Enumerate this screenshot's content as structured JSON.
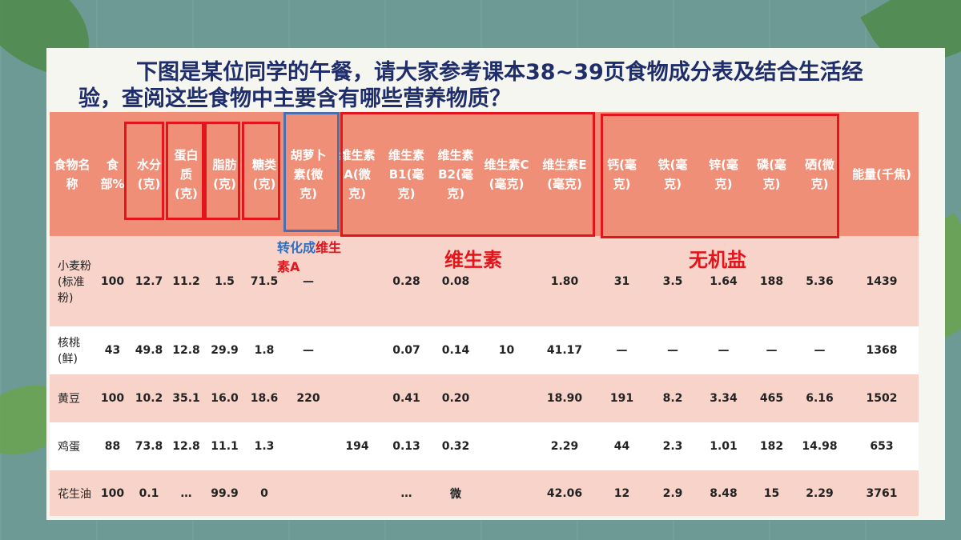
{
  "title": "下图是某位同学的午餐，请大家参考课本38~39页食物成分表及结合生活经验，查阅这些食物中主要含有哪些营养物质？",
  "table": {
    "header": [
      "食物名称",
      "食部%",
      "水分(克)",
      "蛋白质(克)",
      "脂肪(克)",
      "糖类(克)",
      "胡萝卜素(微克)",
      "维生素A(微克)",
      "维生素B1(毫克)",
      "维生素B2(毫克)",
      "维生素C(毫克)",
      "维生素E(毫克)",
      "钙(毫克)",
      "铁(毫克)",
      "锌(毫克)",
      "磷(毫克)",
      "硒(微克)",
      "能量(千焦)"
    ],
    "rows": [
      [
        "小麦粉(标准粉)",
        "100",
        "12.7",
        "11.2",
        "1.5",
        "71.5",
        "—",
        null,
        "0.28",
        "0.08",
        null,
        "1.80",
        "31",
        "3.5",
        "1.64",
        "188",
        "5.36",
        "1439"
      ],
      [
        "核桃(鲜)",
        "43",
        "49.8",
        "12.8",
        "29.9",
        "1.8",
        "—",
        null,
        "0.07",
        "0.14",
        "10",
        "41.17",
        "—",
        "—",
        "—",
        "—",
        "—",
        "1368"
      ],
      [
        "黄豆",
        "100",
        "10.2",
        "35.1",
        "16.0",
        "18.6",
        "220",
        null,
        "0.41",
        "0.20",
        null,
        "18.90",
        "191",
        "8.2",
        "3.34",
        "465",
        "6.16",
        "1502"
      ],
      [
        "鸡蛋",
        "88",
        "73.8",
        "12.8",
        "11.1",
        "1.3",
        null,
        "194",
        "0.13",
        "0.32",
        null,
        "2.29",
        "44",
        "2.3",
        "1.01",
        "182",
        "14.98",
        "653"
      ],
      [
        "花生油",
        "100",
        "0.1",
        "…",
        "99.9",
        "0",
        null,
        null,
        "…",
        "微",
        null,
        "42.06",
        "12",
        "2.9",
        "8.48",
        "15",
        "2.29",
        "3761"
      ]
    ]
  },
  "annotations": {
    "conversion": [
      "转化成",
      "维生素A"
    ],
    "vitamins": "维生素",
    "minerals": "无机盐"
  }
}
